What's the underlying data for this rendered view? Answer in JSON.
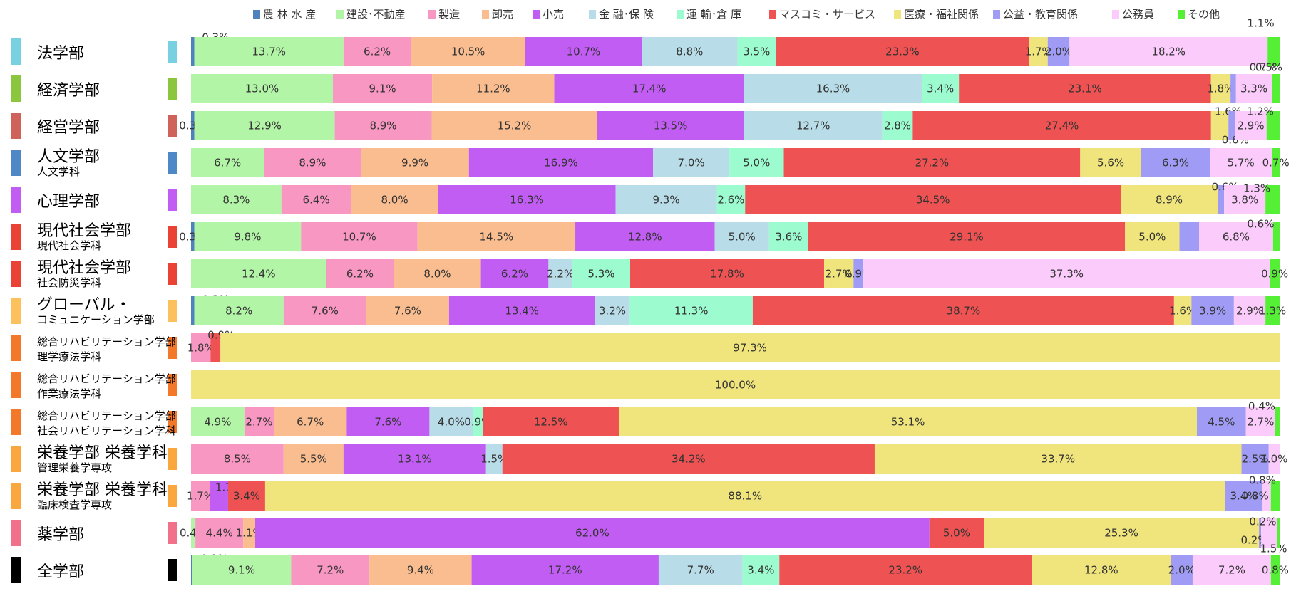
{
  "chart_data": {
    "type": "bar",
    "orientation": "horizontal",
    "stacked": "percent",
    "legend_position": "top",
    "legend": [
      "農 林 水 産",
      "建設･不動産",
      "製造",
      "卸売",
      "小売",
      "金 融･保 険",
      "運 輸･倉 庫",
      "マスコミ・サービス",
      "医療・福祉関係",
      "公益・教育関係",
      "公務員",
      "その他"
    ],
    "colors": [
      "#4f81bd",
      "#b3f5a7",
      "#f898c2",
      "#f9bd90",
      "#c15df3",
      "#b9dde8",
      "#9cfbcf",
      "#ee5252",
      "#f0e57c",
      "#a09cf5",
      "#fbccfb",
      "#55f035"
    ],
    "rows": [
      {
        "label": "法学部",
        "sub": "",
        "swatch": "#78d0e0",
        "labels": [
          "0.3%",
          "13.7%",
          "6.2%",
          "10.5%",
          "10.7%",
          "8.8%",
          "3.5%",
          "23.3%",
          "1.7%",
          "2.0%",
          "18.2%",
          "1.1%"
        ],
        "values": [
          0.3,
          13.7,
          6.2,
          10.5,
          10.7,
          8.8,
          3.5,
          23.3,
          1.7,
          2.0,
          18.2,
          1.1
        ]
      },
      {
        "label": "経済学部",
        "sub": "",
        "swatch": "#8cc63f",
        "labels": [
          "",
          "13.0%",
          "9.1%",
          "11.2%",
          "17.4%",
          "16.3%",
          "3.4%",
          "23.1%",
          "1.8%",
          "0.5%",
          "3.3%",
          "0.7%"
        ],
        "values": [
          0,
          13.0,
          9.1,
          11.2,
          17.4,
          16.3,
          3.4,
          23.1,
          1.8,
          0.5,
          3.3,
          0.7
        ]
      },
      {
        "label": "経営学部",
        "sub": "",
        "swatch": "#cf625b",
        "labels": [
          "0.3%",
          "12.9%",
          "8.9%",
          "15.2%",
          "13.5%",
          "12.7%",
          "2.8%",
          "27.4%",
          "1.6%",
          "0.6%",
          "2.9%",
          "1.2%"
        ],
        "values": [
          0.3,
          12.9,
          8.9,
          15.2,
          13.5,
          12.7,
          2.8,
          27.4,
          1.6,
          0.6,
          2.9,
          1.2
        ]
      },
      {
        "label": "人文学部",
        "sub": "人文学科",
        "swatch": "#4f88c6",
        "labels": [
          "",
          "6.7%",
          "8.9%",
          "9.9%",
          "16.9%",
          "7.0%",
          "5.0%",
          "27.2%",
          "5.6%",
          "6.3%",
          "5.7%",
          "0.7%"
        ],
        "values": [
          0,
          6.7,
          8.9,
          9.9,
          16.9,
          7.0,
          5.0,
          27.2,
          5.6,
          6.3,
          5.7,
          0.7
        ]
      },
      {
        "label": "心理学部",
        "sub": "",
        "swatch": "#c15df3",
        "labels": [
          "",
          "8.3%",
          "6.4%",
          "8.0%",
          "16.3%",
          "9.3%",
          "2.6%",
          "34.5%",
          "8.9%",
          "0.6%",
          "3.8%",
          "1.3%"
        ],
        "values": [
          0,
          8.3,
          6.4,
          8.0,
          16.3,
          9.3,
          2.6,
          34.5,
          8.9,
          0.6,
          3.8,
          1.3
        ]
      },
      {
        "label": "現代社会学部",
        "sub": "現代社会学科",
        "swatch": "#ea4335",
        "labels": [
          "0.3%",
          "9.8%",
          "10.7%",
          "14.5%",
          "12.8%",
          "5.0%",
          "3.6%",
          "29.1%",
          "5.0%",
          "",
          "6.8%",
          "0.6%"
        ],
        "values": [
          0.3,
          9.8,
          10.7,
          14.5,
          12.8,
          5.0,
          3.6,
          29.1,
          5.0,
          1.8,
          6.8,
          0.6
        ]
      },
      {
        "label": "現代社会学部",
        "sub": "社会防災学科",
        "swatch": "#ea4335",
        "labels": [
          "",
          "12.4%",
          "6.2%",
          "8.0%",
          "6.2%",
          "2.2%",
          "5.3%",
          "17.8%",
          "2.7%",
          "0.9%",
          "37.3%",
          "0.9%"
        ],
        "values": [
          0,
          12.4,
          6.2,
          8.0,
          6.2,
          2.2,
          5.3,
          17.8,
          2.7,
          0.9,
          37.3,
          0.9
        ]
      },
      {
        "label": "グローバル・",
        "sub": "コミュニケーション学部",
        "swatch": "#fcc15c",
        "labels": [
          "0.3%",
          "8.2%",
          "7.6%",
          "7.6%",
          "13.4%",
          "3.2%",
          "11.3%",
          "38.7%",
          "1.6%",
          "3.9%",
          "2.9%",
          "1.3%"
        ],
        "values": [
          0.3,
          8.2,
          7.6,
          7.6,
          13.4,
          3.2,
          11.3,
          38.7,
          1.6,
          3.9,
          2.9,
          1.3
        ]
      },
      {
        "label": "総合リハビリテーション学部",
        "sub": "理学療法学科",
        "swatch": "#f3782a",
        "labels": [
          "",
          "",
          "1.8%",
          "",
          "",
          "",
          "",
          "0.9%",
          "97.3%",
          "",
          "",
          ""
        ],
        "values": [
          0,
          0,
          1.8,
          0,
          0,
          0,
          0,
          0.9,
          97.3,
          0,
          0,
          0
        ]
      },
      {
        "label": "総合リハビリテーション学部",
        "sub": "作業療法学科",
        "swatch": "#f3782a",
        "labels": [
          "",
          "",
          "",
          "",
          "",
          "",
          "",
          "",
          "100.0%",
          "",
          "",
          ""
        ],
        "values": [
          0,
          0,
          0,
          0,
          0,
          0,
          0,
          0,
          100.0,
          0,
          0,
          0
        ]
      },
      {
        "label": "総合リハビリテーション学部",
        "sub": "社会リハビリテーション学科",
        "swatch": "#f3782a",
        "labels": [
          "",
          "4.9%",
          "2.7%",
          "6.7%",
          "7.6%",
          "4.0%",
          "0.9%",
          "12.5%",
          "53.1%",
          "4.5%",
          "2.7%",
          "0.4%"
        ],
        "values": [
          0,
          4.9,
          2.7,
          6.7,
          7.6,
          4.0,
          0.9,
          12.5,
          53.1,
          4.5,
          2.7,
          0.4
        ]
      },
      {
        "label": "栄養学部 栄養学科",
        "sub": "管理栄養学専攻",
        "swatch": "#f9a73e",
        "labels": [
          "",
          "",
          "8.5%",
          "5.5%",
          "13.1%",
          "1.5%",
          "",
          "34.2%",
          "33.7%",
          "2.5%",
          "1.0%",
          ""
        ],
        "values": [
          0,
          0,
          8.5,
          5.5,
          13.1,
          1.5,
          0,
          34.2,
          33.7,
          2.5,
          1.0,
          0
        ]
      },
      {
        "label": "栄養学部 栄養学科",
        "sub": "臨床検査学専攻",
        "swatch": "#f9a73e",
        "labels": [
          "",
          "",
          "1.7%",
          "",
          "1.7%",
          "",
          "",
          "3.4%",
          "88.1%",
          "3.4%",
          "0.8%",
          "0.8%"
        ],
        "values": [
          0,
          0,
          1.7,
          0,
          1.7,
          0,
          0,
          3.4,
          88.1,
          3.4,
          0.8,
          0.8
        ]
      },
      {
        "label": "薬学部",
        "sub": "",
        "swatch": "#f07189",
        "labels": [
          "",
          "0.4%",
          "4.4%",
          "1.1%",
          "62.0%",
          "",
          "",
          "5.0%",
          "25.3%",
          "0.2%",
          "1.5%",
          "0.2%"
        ],
        "values": [
          0,
          0.4,
          4.4,
          1.1,
          62.0,
          0,
          0,
          5.0,
          25.3,
          0.2,
          1.5,
          0.2
        ]
      },
      {
        "label": "全学部",
        "sub": "",
        "swatch": "#000000",
        "labels": [
          "0.1%",
          "9.1%",
          "7.2%",
          "9.4%",
          "17.2%",
          "7.7%",
          "3.4%",
          "23.2%",
          "12.8%",
          "2.0%",
          "7.2%",
          "0.8%"
        ],
        "values": [
          0.1,
          9.1,
          7.2,
          9.4,
          17.2,
          7.7,
          3.4,
          23.2,
          12.8,
          2.0,
          7.2,
          0.8
        ]
      }
    ]
  }
}
